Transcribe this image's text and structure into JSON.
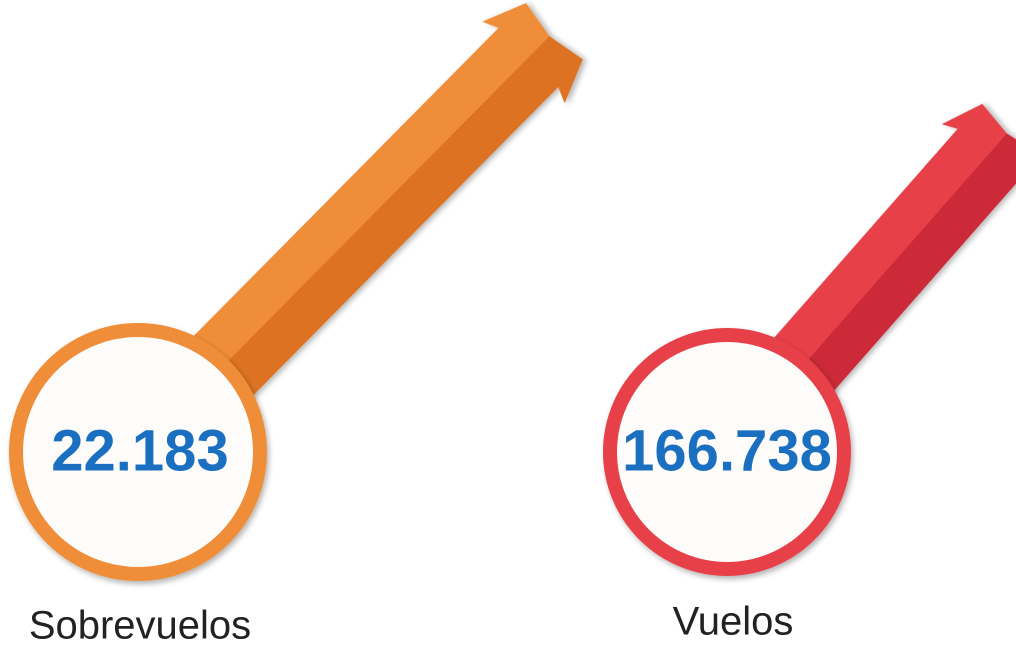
{
  "items": [
    {
      "value": "22.183",
      "label": "Sobrevuelos"
    },
    {
      "value": "166.738",
      "label": "Vuelos"
    }
  ]
}
